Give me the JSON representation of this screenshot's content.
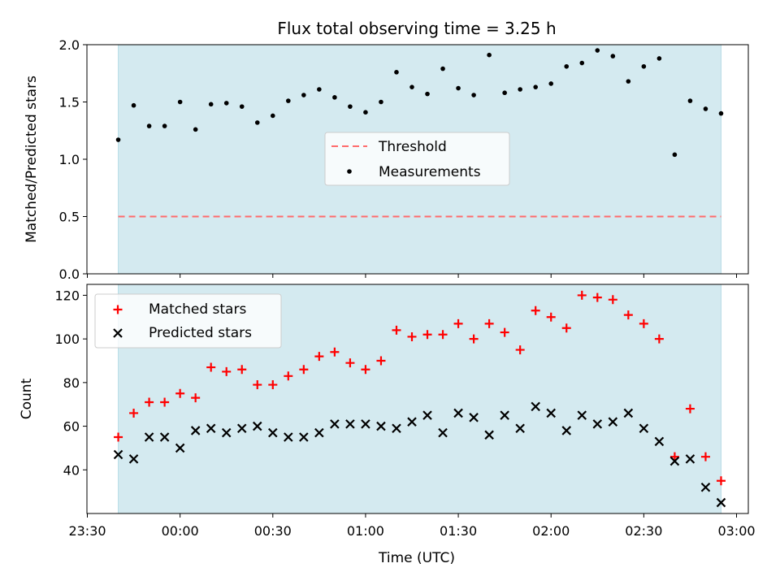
{
  "chart_data": {
    "title": "Flux total observing time = 3.25 h",
    "xlabel": "Time (UTC)",
    "x_tick_labels": [
      "23:30",
      "00:00",
      "00:30",
      "01:00",
      "01:30",
      "02:00",
      "02:30",
      "03:00"
    ],
    "x_tick_times": [
      "23:30",
      "00:00",
      "00:30",
      "01:00",
      "01:30",
      "02:00",
      "02:30",
      "03:00"
    ],
    "observing_window": {
      "start": "23:40",
      "end": "02:55",
      "color": "#d4eaf0"
    },
    "times": [
      "23:40",
      "23:45",
      "23:50",
      "23:55",
      "00:00",
      "00:05",
      "00:10",
      "00:15",
      "00:20",
      "00:25",
      "00:30",
      "00:35",
      "00:40",
      "00:45",
      "00:50",
      "00:55",
      "01:00",
      "01:05",
      "01:10",
      "01:15",
      "01:20",
      "01:25",
      "01:30",
      "01:35",
      "01:40",
      "01:45",
      "01:50",
      "01:55",
      "02:00",
      "02:05",
      "02:10",
      "02:15",
      "02:20",
      "02:25",
      "02:30",
      "02:35",
      "02:40",
      "02:45",
      "02:50",
      "02:55"
    ],
    "panels": [
      {
        "type": "scatter",
        "ylabel": "Matched/Predicted stars",
        "ylim": [
          0,
          2.0
        ],
        "y_ticks": [
          "0.0",
          "0.5",
          "1.0",
          "1.5",
          "2.0"
        ],
        "y_tick_values": [
          0,
          0.5,
          1.0,
          1.5,
          2.0
        ],
        "legend_position": "center",
        "legend": [
          "Threshold",
          "Measurements"
        ],
        "threshold": {
          "name": "Threshold",
          "value": 0.5,
          "color": "#ff6b6b",
          "style": "dashed"
        },
        "series": [
          {
            "name": "Measurements",
            "color": "#000000",
            "marker": "dot",
            "values": [
              1.17,
              1.47,
              1.29,
              1.29,
              1.5,
              1.26,
              1.48,
              1.49,
              1.46,
              1.32,
              1.38,
              1.51,
              1.56,
              1.61,
              1.54,
              1.46,
              1.41,
              1.5,
              1.76,
              1.63,
              1.57,
              1.79,
              1.62,
              1.56,
              1.91,
              1.58,
              1.61,
              1.63,
              1.66,
              1.81,
              1.84,
              1.95,
              1.9,
              1.68,
              1.81,
              1.88,
              1.04,
              1.51,
              1.44,
              1.4
            ]
          }
        ]
      },
      {
        "type": "scatter",
        "ylabel": "Count",
        "ylim": [
          20,
          125
        ],
        "y_ticks": [
          "40",
          "60",
          "80",
          "100",
          "120"
        ],
        "y_tick_values": [
          40,
          60,
          80,
          100,
          120
        ],
        "legend_position": "top-left",
        "legend": [
          "Matched stars",
          "Predicted stars"
        ],
        "series": [
          {
            "name": "Matched stars",
            "color": "#ff0000",
            "marker": "plus",
            "values": [
              55,
              66,
              71,
              71,
              75,
              73,
              87,
              85,
              86,
              79,
              79,
              83,
              86,
              92,
              94,
              89,
              86,
              90,
              104,
              101,
              102,
              102,
              107,
              100,
              107,
              103,
              95,
              113,
              110,
              105,
              120,
              119,
              118,
              111,
              107,
              100,
              46,
              68,
              46,
              35
            ]
          },
          {
            "name": "Predicted stars",
            "color": "#000000",
            "marker": "x",
            "values": [
              47,
              45,
              55,
              55,
              50,
              58,
              59,
              57,
              59,
              60,
              57,
              55,
              55,
              57,
              61,
              61,
              61,
              60,
              59,
              62,
              65,
              57,
              66,
              64,
              56,
              65,
              59,
              69,
              66,
              58,
              65,
              61,
              62,
              66,
              59,
              53,
              44,
              45,
              32,
              25
            ]
          }
        ]
      }
    ]
  }
}
